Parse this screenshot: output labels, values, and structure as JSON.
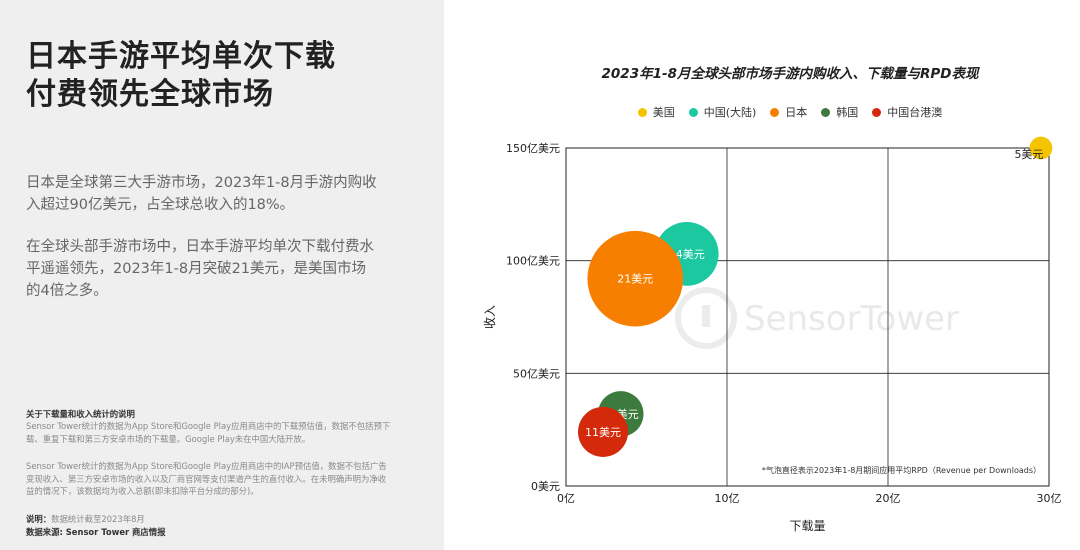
{
  "headline": [
    "日本手游平均单次下载",
    "付费领先全球市场"
  ],
  "paragraphs": [
    "日本是全球第三大手游市场，2023年1-8月手游内购收入超过90亿美元，占全球总收入的18%。",
    "在全球头部手游市场中，日本手游平均单次下载付费水平遥遥领先，2023年1-8月突破21美元，是美国市场的4倍之多。"
  ],
  "notes": {
    "title": "关于下载量和收入统计的说明",
    "text1": "Sensor Tower统计的数据为App Store和Google Play应用商店中的下载预估值，数据不包括预下载、重复下载和第三方安卓市场的下载量。Google Play未在中国大陆开放。",
    "text2": "Sensor Tower统计的数据为App Store和Google Play应用商店中的IAP预估值，数据不包括广告变现收入、第三方安卓市场的收入以及厂商官网等支付渠道产生的直付收入。在未明确声明为净收益的情况下，该数据均为收入总额(即未扣除平台分成的部分)。",
    "explain_label": "说明：",
    "explain_text": "数据统计截至2023年8月",
    "source_label": "数据来源: ",
    "source_text": "Sensor Tower 商店情报"
  },
  "watermark": "SensorTower",
  "chart_data": {
    "type": "scatter",
    "title": "2023年1-8月全球头部市场手游内购收入、下载量与RPD表现",
    "xlabel": "下载量",
    "ylabel": "收入",
    "xlim": [
      0,
      30
    ],
    "ylim": [
      0,
      150
    ],
    "x_ticks": [
      {
        "value": 0,
        "label": "0亿"
      },
      {
        "value": 10,
        "label": "10亿"
      },
      {
        "value": 20,
        "label": "20亿"
      },
      {
        "value": 30,
        "label": "30亿"
      }
    ],
    "y_ticks": [
      {
        "value": 0,
        "label": "0美元"
      },
      {
        "value": 50,
        "label": "50亿美元"
      },
      {
        "value": 100,
        "label": "100亿美元"
      },
      {
        "value": 150,
        "label": "150亿美元"
      }
    ],
    "grid": true,
    "legend_position": "top-center",
    "footnote": "*气泡直径表示2023年1-8月期间应用平均RPD（Revenue per Downloads）",
    "series": [
      {
        "name": "美国",
        "x": 29.5,
        "y": 150,
        "rpd": 5,
        "label": "5美元",
        "color": "#f5c400"
      },
      {
        "name": "中国(大陆)",
        "x": 7.5,
        "y": 103,
        "rpd": 14,
        "label": "14美元",
        "color": "#1bc8a0"
      },
      {
        "name": "日本",
        "x": 4.3,
        "y": 92,
        "rpd": 21,
        "label": "21美元",
        "color": "#f77f00"
      },
      {
        "name": "韩国",
        "x": 3.4,
        "y": 32,
        "rpd": 10,
        "label": "10美元",
        "color": "#3d7a3d"
      },
      {
        "name": "中国台港澳",
        "x": 2.3,
        "y": 24,
        "rpd": 11,
        "label": "11美元",
        "color": "#d42a0b"
      }
    ]
  }
}
